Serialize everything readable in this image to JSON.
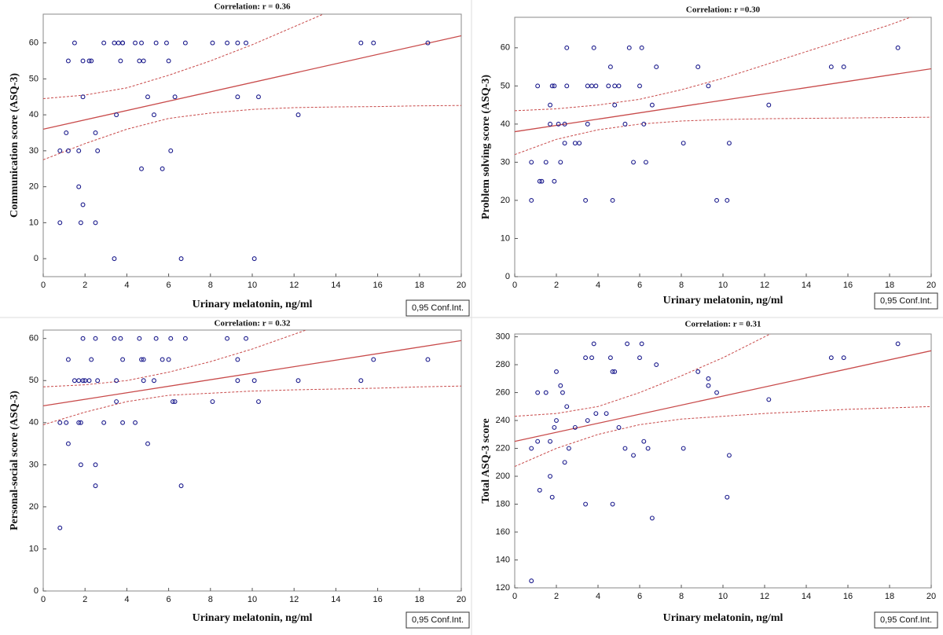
{
  "chart_data": [
    {
      "type": "scatter",
      "title": "Correlation: r = 0.36",
      "x_label": "Urinary melatonin, ng/ml",
      "y_label": "Communication score (ASQ-3)",
      "point_color": "#1a1a8c",
      "line_color": "#c84a4a",
      "xlim": [
        0,
        20
      ],
      "xticks": [
        0,
        2,
        4,
        6,
        8,
        10,
        12,
        14,
        16,
        18,
        20
      ],
      "ylim": [
        -5,
        68
      ],
      "yticks": [
        0,
        10,
        20,
        30,
        40,
        50,
        60
      ],
      "x": [
        0.8,
        0.8,
        1.1,
        1.2,
        1.2,
        1.5,
        1.7,
        1.7,
        1.8,
        1.9,
        1.9,
        1.9,
        2.2,
        2.3,
        2.5,
        2.5,
        2.6,
        2.9,
        3.4,
        3.4,
        3.5,
        3.6,
        3.7,
        3.8,
        3.8,
        4.4,
        4.6,
        4.7,
        4.7,
        4.8,
        5.0,
        5.3,
        5.4,
        5.7,
        5.9,
        6.0,
        6.1,
        6.3,
        6.6,
        6.8,
        8.1,
        8.8,
        9.3,
        9.3,
        9.7,
        10.1,
        10.3,
        12.2,
        15.2,
        15.8,
        18.4
      ],
      "values": [
        30,
        10,
        35,
        55,
        30,
        60,
        30,
        20,
        10,
        15,
        45,
        55,
        55,
        55,
        35,
        10,
        30,
        60,
        60,
        0,
        40,
        60,
        55,
        60,
        60,
        60,
        55,
        25,
        60,
        55,
        45,
        40,
        60,
        25,
        60,
        55,
        30,
        45,
        0,
        60,
        60,
        60,
        45,
        60,
        60,
        0,
        45,
        40,
        60,
        60,
        60
      ],
      "fit": {
        "x": [
          0,
          20
        ],
        "values": [
          36,
          62
        ]
      },
      "conf_int": {
        "label": "0,95 Conf.Int.",
        "x": [
          0,
          2,
          4,
          6,
          8,
          10,
          12,
          14,
          16,
          18,
          20
        ],
        "upper": [
          44.5,
          45.5,
          47.5,
          51,
          55,
          59.5,
          64.5,
          69.5,
          74.5,
          79.5,
          84.5
        ],
        "lower": [
          27.5,
          32,
          36,
          39,
          40.5,
          41.5,
          42,
          42.2,
          42.3,
          42.5,
          42.6
        ]
      }
    },
    {
      "type": "scatter",
      "title": "Correlation: r =0.30",
      "x_label": "Urinary melatonin, ng/ml",
      "y_label": "Problem solving score (ASQ-3)",
      "point_color": "#1a1a8c",
      "line_color": "#c84a4a",
      "xlim": [
        0,
        20
      ],
      "xticks": [
        0,
        2,
        4,
        6,
        8,
        10,
        12,
        14,
        16,
        18,
        20
      ],
      "ylim": [
        0,
        68
      ],
      "yticks": [
        0,
        10,
        20,
        30,
        40,
        50,
        60
      ],
      "x": [
        0.8,
        0.8,
        1.1,
        1.2,
        1.3,
        1.5,
        1.7,
        1.7,
        1.8,
        1.9,
        1.9,
        2.1,
        2.2,
        2.4,
        2.4,
        2.5,
        2.5,
        2.9,
        3.1,
        3.4,
        3.5,
        3.5,
        3.7,
        3.8,
        3.9,
        4.5,
        4.6,
        4.7,
        4.8,
        4.8,
        5.0,
        5.3,
        5.5,
        5.7,
        6.0,
        6.1,
        6.2,
        6.3,
        6.6,
        6.8,
        8.1,
        8.8,
        9.3,
        9.7,
        10.2,
        10.3,
        12.2,
        15.2,
        15.8,
        18.4
      ],
      "values": [
        30,
        20,
        50,
        25,
        25,
        30,
        40,
        45,
        50,
        50,
        25,
        40,
        30,
        40,
        35,
        60,
        50,
        35,
        35,
        20,
        40,
        50,
        50,
        60,
        50,
        50,
        55,
        20,
        50,
        45,
        50,
        40,
        60,
        30,
        50,
        60,
        40,
        30,
        45,
        55,
        35,
        55,
        50,
        20,
        20,
        35,
        45,
        55,
        55,
        60
      ],
      "fit": {
        "x": [
          0,
          20
        ],
        "values": [
          38,
          54.5
        ]
      },
      "conf_int": {
        "label": "0,95 Conf.Int.",
        "x": [
          0,
          2,
          4,
          6,
          8,
          10,
          12,
          14,
          16,
          18,
          20
        ],
        "upper": [
          43.5,
          44,
          45,
          46.5,
          49,
          52,
          55.5,
          59,
          62.5,
          66,
          70
        ],
        "lower": [
          32,
          36,
          38.5,
          40,
          40.8,
          41.2,
          41.4,
          41.5,
          41.6,
          41.7,
          41.8
        ]
      }
    },
    {
      "type": "scatter",
      "title": "Correlation: r = 0.32",
      "x_label": "Urinary melatonin, ng/ml",
      "y_label": "Personal-social score (ASQ-3)",
      "point_color": "#1a1a8c",
      "line_color": "#c84a4a",
      "xlim": [
        0,
        20
      ],
      "xticks": [
        0,
        2,
        4,
        6,
        8,
        10,
        12,
        14,
        16,
        18,
        20
      ],
      "ylim": [
        0,
        62
      ],
      "yticks": [
        0,
        10,
        20,
        30,
        40,
        50,
        60
      ],
      "x": [
        0.8,
        0.8,
        1.1,
        1.2,
        1.2,
        1.5,
        1.7,
        1.7,
        1.8,
        1.8,
        1.9,
        1.9,
        2.0,
        2.2,
        2.3,
        2.5,
        2.5,
        2.5,
        2.6,
        2.9,
        3.4,
        3.5,
        3.5,
        3.7,
        3.8,
        3.8,
        4.4,
        4.6,
        4.7,
        4.8,
        4.8,
        5.0,
        5.3,
        5.4,
        5.7,
        6.0,
        6.1,
        6.2,
        6.3,
        6.6,
        6.8,
        8.1,
        8.8,
        9.3,
        9.3,
        9.7,
        10.1,
        10.3,
        12.2,
        15.2,
        15.8,
        18.4
      ],
      "values": [
        15,
        40,
        40,
        55,
        35,
        50,
        40,
        50,
        40,
        30,
        50,
        60,
        50,
        50,
        55,
        30,
        25,
        60,
        50,
        40,
        60,
        50,
        45,
        60,
        55,
        40,
        40,
        60,
        55,
        55,
        50,
        35,
        50,
        60,
        55,
        55,
        60,
        45,
        45,
        25,
        60,
        45,
        60,
        55,
        50,
        60,
        50,
        45,
        50,
        50,
        55,
        55
      ],
      "fit": {
        "x": [
          0,
          20
        ],
        "values": [
          44,
          59.5
        ]
      },
      "conf_int": {
        "label": "0,95 Conf.Int.",
        "x": [
          0,
          2,
          4,
          6,
          8,
          10,
          12,
          14,
          16,
          18,
          20
        ],
        "upper": [
          48.5,
          49,
          50,
          52,
          54.5,
          57.5,
          61,
          64.5,
          68,
          71.5,
          75
        ],
        "lower": [
          39.5,
          42.5,
          45,
          46.5,
          47,
          47.5,
          47.8,
          48,
          48.2,
          48.5,
          48.7
        ]
      }
    },
    {
      "type": "scatter",
      "title": "Correlation: r = 0.31",
      "x_label": "Urinary melatonin, ng/ml",
      "y_label": "Total ASQ-3 score",
      "point_color": "#1a1a8c",
      "line_color": "#c84a4a",
      "xlim": [
        0,
        20
      ],
      "xticks": [
        0,
        2,
        4,
        6,
        8,
        10,
        12,
        14,
        16,
        18,
        20
      ],
      "ylim": [
        120,
        302
      ],
      "yticks": [
        120,
        140,
        160,
        180,
        200,
        220,
        240,
        260,
        280,
        300
      ],
      "x": [
        0.8,
        0.8,
        1.1,
        1.1,
        1.2,
        1.5,
        1.7,
        1.7,
        1.8,
        1.9,
        2.0,
        2.0,
        2.2,
        2.3,
        2.4,
        2.5,
        2.6,
        2.9,
        3.4,
        3.4,
        3.5,
        3.7,
        3.8,
        3.9,
        4.4,
        4.6,
        4.7,
        4.7,
        4.8,
        5.0,
        5.3,
        5.4,
        5.7,
        6.0,
        6.1,
        6.2,
        6.4,
        6.6,
        6.8,
        8.1,
        8.8,
        9.3,
        9.3,
        9.7,
        10.2,
        10.3,
        12.2,
        15.2,
        15.8,
        18.4
      ],
      "values": [
        220,
        125,
        260,
        225,
        190,
        260,
        200,
        225,
        185,
        235,
        240,
        275,
        265,
        260,
        210,
        250,
        220,
        235,
        285,
        180,
        240,
        285,
        295,
        245,
        245,
        285,
        275,
        180,
        275,
        235,
        220,
        295,
        215,
        285,
        295,
        225,
        220,
        170,
        280,
        220,
        275,
        270,
        265,
        260,
        185,
        215,
        255,
        285,
        285,
        295
      ],
      "fit": {
        "x": [
          0,
          20
        ],
        "values": [
          225,
          290
        ]
      },
      "conf_int": {
        "label": "0,95 Conf.Int.",
        "x": [
          0,
          2,
          4,
          6,
          8,
          10,
          12,
          14,
          16,
          18,
          20
        ],
        "upper": [
          243,
          245,
          250,
          260,
          272,
          285,
          300,
          315,
          330,
          345,
          360
        ],
        "lower": [
          207,
          220,
          230,
          237,
          241,
          243,
          245,
          246.5,
          248,
          249,
          250
        ]
      }
    }
  ]
}
